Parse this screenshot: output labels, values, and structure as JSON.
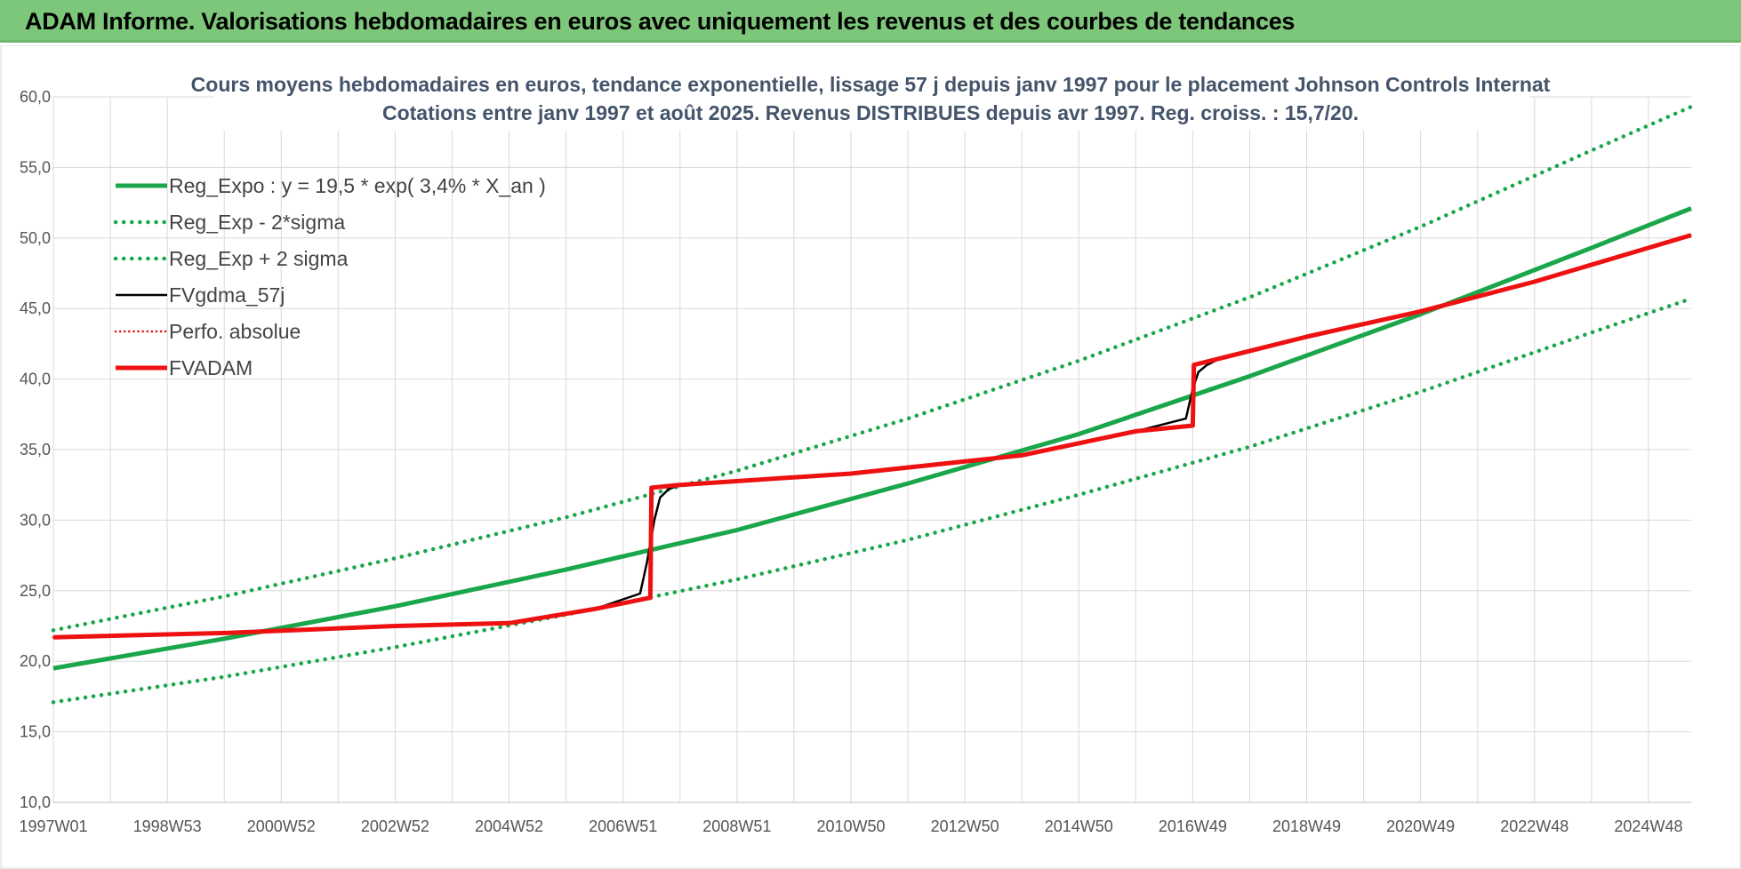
{
  "banner": {
    "title": "ADAM Informe. Valorisations hebdomadaires en euros avec uniquement les revenus et des courbes de tendances"
  },
  "colors": {
    "banner_bg": "#7dc77a",
    "reg_expo": "#1aa64a",
    "sigma": "#1aa64a",
    "fvgdma": "#000000",
    "perfo": "#e01010",
    "fvadam": "#ee1111",
    "grid": "#d9d9d9"
  },
  "chart_data": {
    "type": "line",
    "title": [
      "Cours moyens hebdomadaires en euros, tendance exponentielle, lissage 57 j depuis janv 1997 pour le placement Johnson Controls Internat",
      "Cotations entre janv 1997 et août 2025.  Revenus DISTRIBUES depuis avr 1997. Reg. croiss. : 15,7/20."
    ],
    "xlabel": "",
    "ylabel": "",
    "ylim": [
      10,
      60
    ],
    "yticks": [
      "10,0",
      "15,0",
      "20,0",
      "25,0",
      "30,0",
      "35,0",
      "40,0",
      "45,0",
      "50,0",
      "55,0",
      "60,0"
    ],
    "xlim": [
      1997.0,
      2025.75
    ],
    "xticks": [
      {
        "label": "1997W01",
        "x": 1997.0
      },
      {
        "label": "1998W53",
        "x": 1999.0
      },
      {
        "label": "2000W52",
        "x": 2001.0
      },
      {
        "label": "2002W52",
        "x": 2003.0
      },
      {
        "label": "2004W52",
        "x": 2005.0
      },
      {
        "label": "2006W51",
        "x": 2007.0
      },
      {
        "label": "2008W51",
        "x": 2009.0
      },
      {
        "label": "2010W50",
        "x": 2011.0
      },
      {
        "label": "2012W50",
        "x": 2013.0
      },
      {
        "label": "2014W50",
        "x": 2015.0
      },
      {
        "label": "2016W49",
        "x": 2017.0
      },
      {
        "label": "2018W49",
        "x": 2019.0
      },
      {
        "label": "2020W49",
        "x": 2021.0
      },
      {
        "label": "2022W48",
        "x": 2023.0
      },
      {
        "label": "2024W48",
        "x": 2025.0
      }
    ],
    "grid": true,
    "legend_position": "top-left",
    "series": [
      {
        "name": "Reg_Expo : y = 19,5 * exp( 3,4% *  X_an )",
        "style": "solid-thick",
        "color": "#1aa64a",
        "x": [
          1997.0,
          2000.0,
          2003.0,
          2006.0,
          2009.0,
          2012.0,
          2015.0,
          2018.0,
          2021.0,
          2024.0,
          2025.75
        ],
        "values": [
          19.5,
          21.6,
          23.9,
          26.5,
          29.3,
          32.6,
          36.1,
          40.2,
          44.6,
          49.3,
          52.1
        ]
      },
      {
        "name": "Reg_Exp - 2*sigma",
        "style": "dotted",
        "color": "#1aa64a",
        "x": [
          1997.0,
          2000.0,
          2003.0,
          2006.0,
          2009.0,
          2012.0,
          2015.0,
          2018.0,
          2021.0,
          2024.0,
          2025.75
        ],
        "values": [
          17.1,
          18.9,
          21.0,
          23.3,
          25.8,
          28.6,
          31.8,
          35.2,
          39.1,
          43.3,
          45.7
        ]
      },
      {
        "name": "Reg_Exp + 2 sigma",
        "style": "dotted",
        "color": "#1aa64a",
        "x": [
          1997.0,
          2000.0,
          2003.0,
          2006.0,
          2009.0,
          2012.0,
          2015.0,
          2018.0,
          2021.0,
          2024.0,
          2025.75
        ],
        "values": [
          22.2,
          24.6,
          27.3,
          30.2,
          33.5,
          37.2,
          41.3,
          45.8,
          50.8,
          56.2,
          59.3
        ]
      },
      {
        "name": "FVgdma_57j",
        "style": "solid-thin",
        "color": "#000000",
        "x": [
          1997.0,
          2000.0,
          2003.0,
          2005.0,
          2006.5,
          2007.3,
          2007.42,
          2007.55,
          2007.65,
          2007.8,
          2008.0,
          2011.0,
          2014.0,
          2016.0,
          2016.88,
          2017.0,
          2017.1,
          2017.25,
          2017.45,
          2019.0,
          2021.0,
          2023.0,
          2025.75
        ],
        "values": [
          21.7,
          22.0,
          22.5,
          22.7,
          23.7,
          24.8,
          27.0,
          30.0,
          31.6,
          32.2,
          32.5,
          33.3,
          34.6,
          36.3,
          37.2,
          39.3,
          40.5,
          41.0,
          41.4,
          43.0,
          44.8,
          46.9,
          50.2
        ]
      },
      {
        "name": "Perfo. absolue",
        "style": "dotted-red",
        "color": "#e01010",
        "x": [
          1997.0,
          2000.0,
          2003.0,
          2005.0,
          2006.5,
          2007.48,
          2007.5,
          2008.0,
          2011.0,
          2014.0,
          2016.0,
          2017.0,
          2017.02,
          2019.0,
          2021.0,
          2023.0,
          2025.75
        ],
        "values": [
          21.7,
          22.0,
          22.5,
          22.7,
          23.7,
          24.5,
          32.3,
          32.5,
          33.3,
          34.6,
          36.3,
          36.7,
          41.0,
          43.0,
          44.8,
          46.9,
          50.2
        ]
      },
      {
        "name": "FVADAM",
        "style": "solid-thick",
        "color": "#ee1111",
        "x": [
          1997.0,
          2000.0,
          2003.0,
          2005.0,
          2006.5,
          2007.48,
          2007.5,
          2008.0,
          2011.0,
          2014.0,
          2016.0,
          2017.0,
          2017.02,
          2019.0,
          2021.0,
          2023.0,
          2025.75
        ],
        "values": [
          21.7,
          22.0,
          22.5,
          22.7,
          23.7,
          24.5,
          32.3,
          32.5,
          33.3,
          34.6,
          36.3,
          36.7,
          41.0,
          43.0,
          44.8,
          46.9,
          50.2
        ]
      }
    ]
  }
}
